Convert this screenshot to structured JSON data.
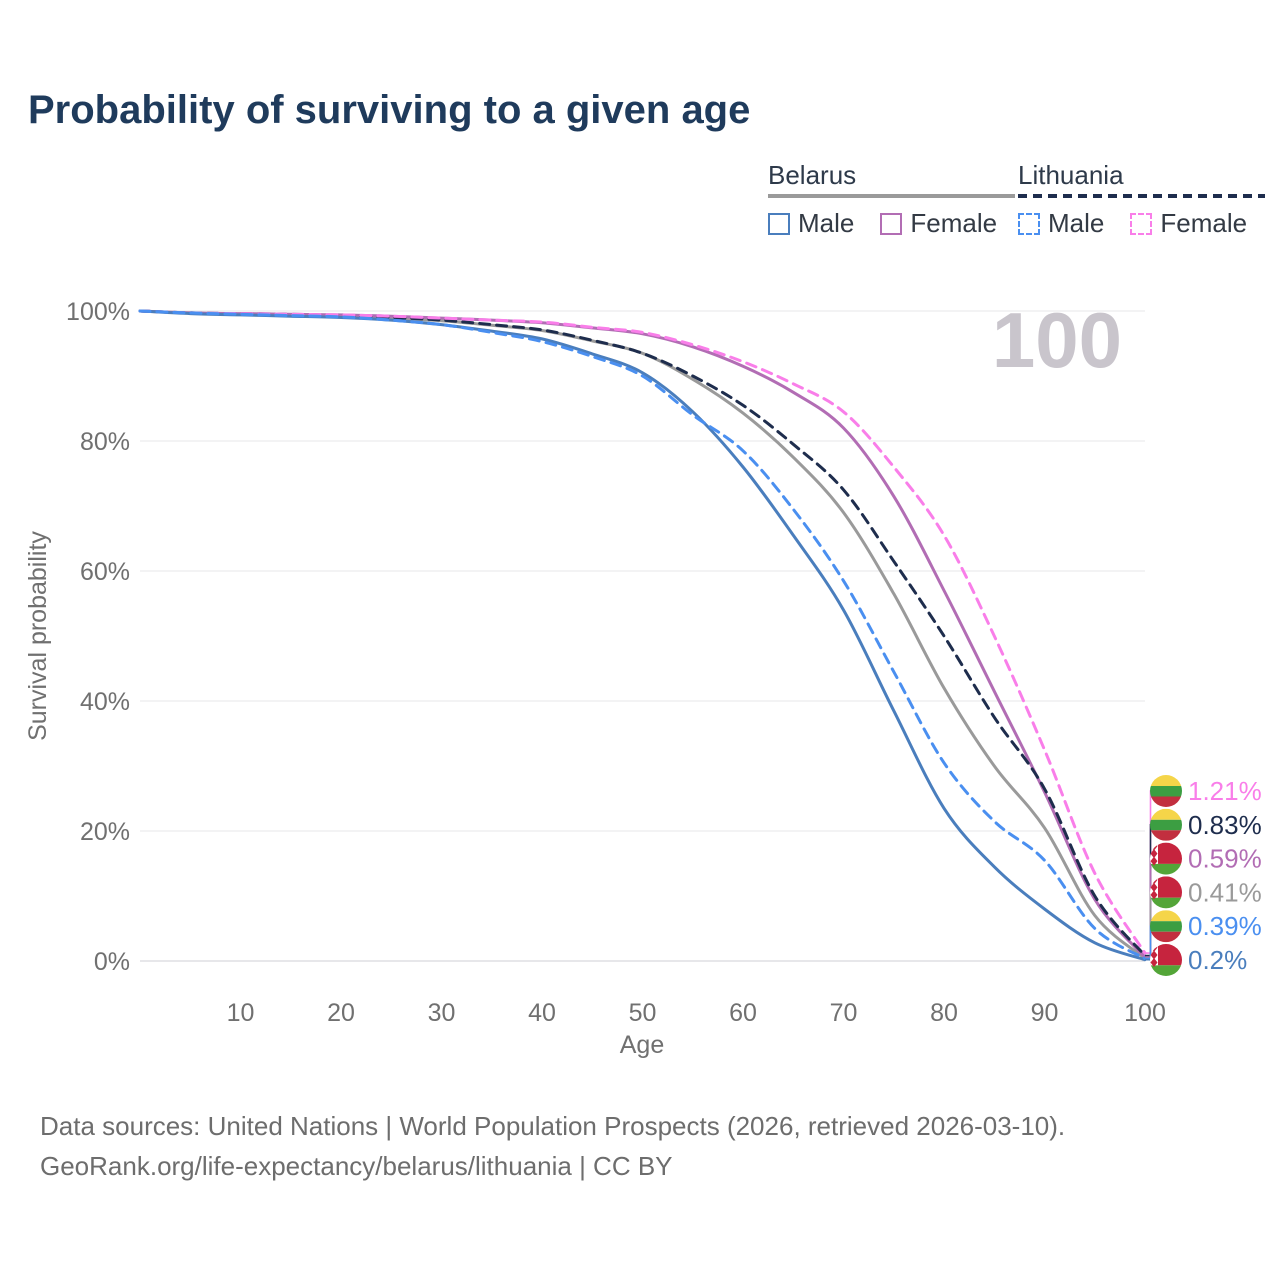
{
  "title": "Probability of surviving to a given age",
  "watermark": "100",
  "colors": {
    "title_text": "#1f3b5c",
    "axis_text": "#707070",
    "gridline": "#e7e7ea",
    "baseline": "#cfcfd4",
    "watermark": "#c9c5cc",
    "footer_text": "#6d6d6d"
  },
  "legend": {
    "groups": [
      {
        "name": "Belarus",
        "line_style": "solid",
        "line_color": "#9a9a9a",
        "items": [
          {
            "label": "Male",
            "color": "#4a7ebd",
            "dashed": false
          },
          {
            "label": "Female",
            "color": "#b26db4",
            "dashed": false
          }
        ]
      },
      {
        "name": "Lithuania",
        "line_style": "dashed",
        "line_color": "#1e2d4d",
        "items": [
          {
            "label": "Male",
            "color": "#4a8ff0",
            "dashed": true
          },
          {
            "label": "Female",
            "color": "#f97ee9",
            "dashed": true
          }
        ]
      }
    ]
  },
  "chart_data": {
    "type": "line",
    "title": "Probability of surviving to a given age",
    "xlabel": "Age",
    "ylabel": "Survival probability",
    "xlim": [
      0,
      100
    ],
    "ylim": [
      0,
      100
    ],
    "grid": "horizontal",
    "legend_position": "top-right",
    "x_ticks": [
      {
        "value": 10,
        "label": "10"
      },
      {
        "value": 20,
        "label": "20"
      },
      {
        "value": 30,
        "label": "30"
      },
      {
        "value": 40,
        "label": "40"
      },
      {
        "value": 50,
        "label": "50"
      },
      {
        "value": 60,
        "label": "60"
      },
      {
        "value": 70,
        "label": "70"
      },
      {
        "value": 80,
        "label": "80"
      },
      {
        "value": 90,
        "label": "90"
      },
      {
        "value": 100,
        "label": "100"
      }
    ],
    "y_ticks": [
      {
        "value": 0,
        "label": "0%"
      },
      {
        "value": 20,
        "label": "20%"
      },
      {
        "value": 40,
        "label": "40%"
      },
      {
        "value": 60,
        "label": "60%"
      },
      {
        "value": 80,
        "label": "80%"
      },
      {
        "value": 100,
        "label": "100%"
      }
    ],
    "x": [
      0,
      5,
      10,
      15,
      20,
      25,
      30,
      35,
      40,
      45,
      50,
      55,
      60,
      65,
      70,
      75,
      80,
      85,
      90,
      95,
      100
    ],
    "series": [
      {
        "name": "Belarus — Both sexes",
        "country": "Belarus",
        "sex": "Both",
        "color": "#9a9a9a",
        "line_style": "solid",
        "flag": "belarus",
        "end_label": "0.41%",
        "values": [
          100,
          99.7,
          99.5,
          99.4,
          99.2,
          98.9,
          98.5,
          97.8,
          97.0,
          95.4,
          93.5,
          89.5,
          84.3,
          77.5,
          69.0,
          56.5,
          42.0,
          30.0,
          20.5,
          7.0,
          0.41
        ]
      },
      {
        "name": "Belarus — Female",
        "country": "Belarus",
        "sex": "Female",
        "color": "#b26db4",
        "line_style": "solid",
        "flag": "belarus",
        "end_label": "0.59%",
        "values": [
          100,
          99.7,
          99.6,
          99.5,
          99.4,
          99.2,
          98.9,
          98.6,
          98.2,
          97.4,
          96.5,
          94.5,
          91.5,
          87.5,
          82.0,
          71.5,
          57.0,
          41.5,
          26.0,
          9.5,
          0.59
        ]
      },
      {
        "name": "Lithuania — Both sexes",
        "country": "Lithuania",
        "sex": "Both",
        "color": "#1e2d4d",
        "line_style": "dashed",
        "flag": "lithuania",
        "end_label": "0.83%",
        "values": [
          100,
          99.7,
          99.6,
          99.5,
          99.3,
          99.0,
          98.6,
          97.9,
          97.1,
          95.5,
          93.5,
          90.0,
          85.5,
          79.5,
          72.5,
          61.5,
          50.0,
          37.5,
          26.5,
          10.0,
          0.83
        ]
      },
      {
        "name": "Lithuania — Female",
        "country": "Lithuania",
        "sex": "Female",
        "color": "#f97ee9",
        "line_style": "dashed",
        "flag": "lithuania",
        "end_label": "1.21%",
        "values": [
          100,
          99.7,
          99.6,
          99.5,
          99.4,
          99.2,
          98.9,
          98.6,
          98.3,
          97.5,
          96.7,
          94.8,
          92.2,
          88.8,
          84.5,
          76.0,
          65.5,
          50.0,
          32.5,
          13.5,
          1.21
        ]
      },
      {
        "name": "Belarus — Male",
        "country": "Belarus",
        "sex": "Male",
        "color": "#4a7ebd",
        "line_style": "solid",
        "flag": "belarus",
        "end_label": "0.2%",
        "values": [
          100,
          99.6,
          99.4,
          99.2,
          99.0,
          98.6,
          97.9,
          96.9,
          95.7,
          93.4,
          90.5,
          84.5,
          76.0,
          65.5,
          54.0,
          38.5,
          23.5,
          14.5,
          8.0,
          2.8,
          0.2
        ]
      },
      {
        "name": "Lithuania — Male",
        "country": "Lithuania",
        "sex": "Male",
        "color": "#4a8ff0",
        "line_style": "dashed",
        "flag": "lithuania",
        "end_label": "0.39%",
        "values": [
          100,
          99.7,
          99.5,
          99.3,
          99.1,
          98.6,
          97.9,
          96.7,
          95.3,
          93.0,
          90.0,
          84.0,
          78.5,
          69.5,
          58.5,
          44.5,
          30.5,
          21.5,
          15.5,
          5.0,
          0.39
        ]
      }
    ],
    "flag_colors": {
      "lithuania": {
        "yellow": "#f5d549",
        "green": "#3c9e42",
        "red": "#c22f3f"
      },
      "belarus": {
        "red": "#c6243e",
        "green": "#53a538",
        "white": "#ffffff"
      }
    }
  },
  "footer": {
    "line1": "Data sources: United Nations | World Population Prospects (2026, retrieved 2026-03-10).",
    "line2": "GeoRank.org/life-expectancy/belarus/lithuania | CC BY"
  }
}
